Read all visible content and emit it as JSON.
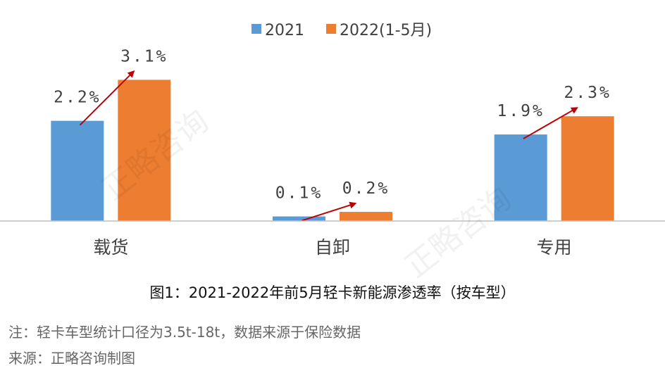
{
  "chart_data": {
    "type": "bar",
    "categories": [
      "载货",
      "自卸",
      "专用"
    ],
    "series": [
      {
        "name": "2021",
        "values": [
          2.2,
          0.1,
          1.9
        ],
        "labels": [
          "2.2%",
          "0.1%",
          "1.9%"
        ],
        "color": "#5B9BD5"
      },
      {
        "name": "2022(1-5月)",
        "values": [
          3.1,
          0.2,
          2.3
        ],
        "labels": [
          "3.1%",
          "0.2%",
          "2.3%"
        ],
        "color": "#ED7D31"
      }
    ],
    "ylim": [
      0,
      3.5
    ],
    "grid": false,
    "legend": "top-center",
    "annotations": "red arrows from 2021 bar to 2022 bar in each group",
    "arrow_color": "#C00000"
  },
  "caption": "图1：2021-2022年前5月轻卡新能源渗透率（按车型）",
  "note": "注：轻卡车型统计口径为3.5t-18t，数据来源于保险数据",
  "source": "来源：正略咨询制图",
  "watermark": "正略咨询"
}
